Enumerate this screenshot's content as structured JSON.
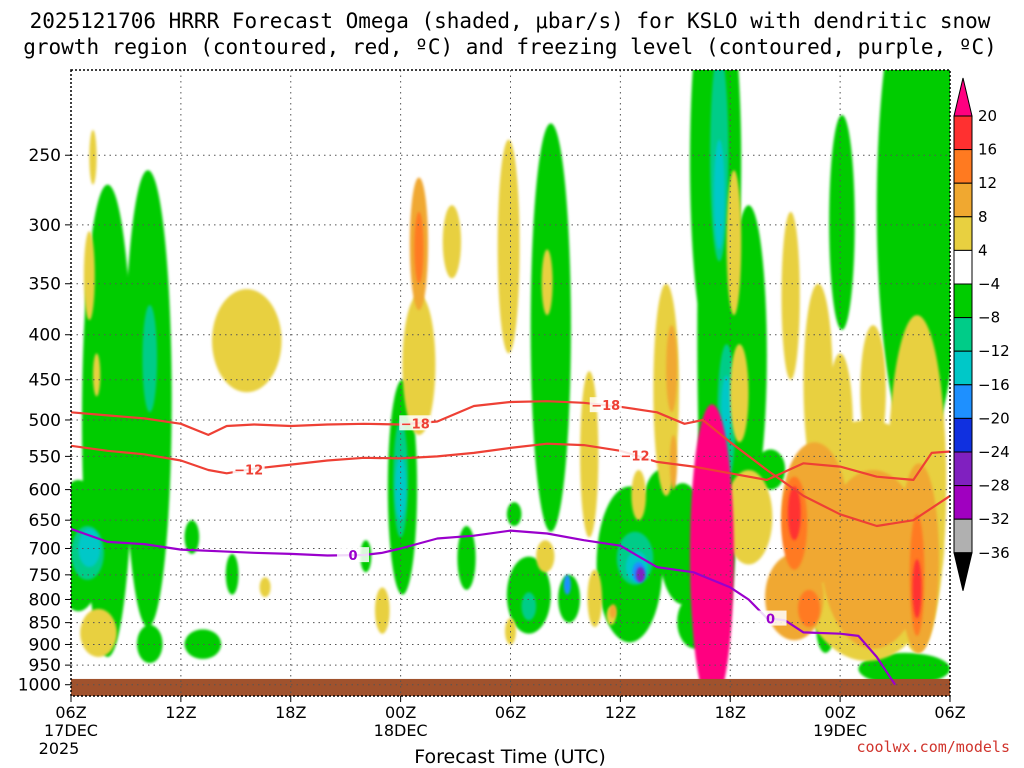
{
  "chart_data": {
    "type": "heatmap",
    "title": {
      "line1": "2025121706 HRRR Forecast Omega (shaded, μbar/s) for KSLO with dendritic snow",
      "line2": "growth region (contoured, red, ºC) and freezing level (contoured, purple, ºC)"
    },
    "xlabel": "Forecast Time (UTC)",
    "ylabel": "",
    "credit": "coolwx.com/models",
    "x_ticks": [
      {
        "h": 0,
        "label": "06Z",
        "sub1": "17DEC",
        "sub2": "2025"
      },
      {
        "h": 6,
        "label": "12Z",
        "sub1": "",
        "sub2": ""
      },
      {
        "h": 12,
        "label": "18Z",
        "sub1": "",
        "sub2": ""
      },
      {
        "h": 18,
        "label": "00Z",
        "sub1": "18DEC",
        "sub2": ""
      },
      {
        "h": 24,
        "label": "06Z",
        "sub1": "",
        "sub2": ""
      },
      {
        "h": 30,
        "label": "12Z",
        "sub1": "",
        "sub2": ""
      },
      {
        "h": 36,
        "label": "18Z",
        "sub1": "",
        "sub2": ""
      },
      {
        "h": 42,
        "label": "00Z",
        "sub1": "19DEC",
        "sub2": ""
      },
      {
        "h": 48,
        "label": "06Z",
        "sub1": "",
        "sub2": ""
      }
    ],
    "xlim": [
      0,
      48
    ],
    "y_ticks": [
      250,
      300,
      350,
      400,
      450,
      500,
      550,
      600,
      650,
      700,
      750,
      800,
      850,
      900,
      950,
      1000
    ],
    "ylim_hPa": [
      200,
      1030
    ],
    "y_scale": "log",
    "grid": true,
    "ground": {
      "pressure_hPa": 985,
      "color": "#a0522d"
    },
    "colorbar": {
      "labels": [
        "20",
        "16",
        "12",
        "8",
        "4",
        "−4",
        "−8",
        "−12",
        "−16",
        "−20",
        "−24",
        "−28",
        "−32",
        "−36"
      ],
      "colors": [
        "#ff0080",
        "#ff3030",
        "#ff7a20",
        "#f0a830",
        "#e8d040",
        "#ffffff",
        "#00cc00",
        "#00cc88",
        "#00c8c8",
        "#1e90ff",
        "#1030e0",
        "#8020c0",
        "#a000c0",
        "#b0b0b0",
        "#000000"
      ]
    },
    "omega_regions": [
      {
        "name": "green",
        "color": "#00cc00",
        "blobs": [
          [
            0.4,
            705,
            1.4,
            120
          ],
          [
            2.0,
            600,
            1.4,
            330
          ],
          [
            4.2,
            560,
            1.3,
            300
          ],
          [
            4.3,
            900,
            0.7,
            45
          ],
          [
            6.6,
            680,
            0.4,
            30
          ],
          [
            7.2,
            900,
            1.0,
            35
          ],
          [
            8.8,
            750,
            0.35,
            40
          ],
          [
            18.1,
            620,
            0.8,
            170
          ],
          [
            16.1,
            715,
            0.3,
            30
          ],
          [
            21.6,
            720,
            0.5,
            60
          ],
          [
            24.2,
            640,
            0.4,
            20
          ],
          [
            25.0,
            795,
            1.2,
            80
          ],
          [
            26.2,
            450,
            1.1,
            220
          ],
          [
            27.2,
            800,
            0.6,
            50
          ],
          [
            30.5,
            745,
            1.8,
            150
          ],
          [
            32.2,
            640,
            1.0,
            70
          ],
          [
            33.4,
            700,
            1.3,
            110
          ],
          [
            34.1,
            850,
            1.0,
            60
          ],
          [
            35.2,
            190,
            1.4,
            240
          ],
          [
            35.4,
            550,
            1.2,
            380
          ],
          [
            37.0,
            455,
            1.0,
            170
          ],
          [
            38.2,
            570,
            0.8,
            30
          ],
          [
            41.2,
            865,
            0.5,
            55
          ],
          [
            42.1,
            310,
            0.7,
            85
          ],
          [
            46.3,
            340,
            2.3,
            210
          ],
          [
            45.5,
            960,
            2.5,
            40
          ]
        ]
      },
      {
        "name": "teal",
        "color": "#00cc88",
        "blobs": [
          [
            0.9,
            710,
            0.9,
            50
          ],
          [
            4.3,
            430,
            0.4,
            60
          ],
          [
            18.0,
            590,
            0.4,
            90
          ],
          [
            30.8,
            720,
            1.0,
            50
          ],
          [
            35.4,
            260,
            0.5,
            70
          ],
          [
            35.8,
            500,
            0.5,
            90
          ],
          [
            41.2,
            840,
            0.3,
            25
          ],
          [
            25.0,
            815,
            0.4,
            30
          ]
        ]
      },
      {
        "name": "cyan",
        "color": "#00c8c8",
        "blobs": [
          [
            1.0,
            700,
            0.6,
            35
          ],
          [
            18.0,
            600,
            0.3,
            50
          ],
          [
            30.9,
            735,
            0.6,
            30
          ],
          [
            35.4,
            280,
            0.3,
            40
          ],
          [
            35.8,
            485,
            0.3,
            40
          ]
        ]
      },
      {
        "name": "blue",
        "color": "#1e90ff",
        "blobs": [
          [
            31.0,
            745,
            0.35,
            20
          ],
          [
            27.1,
            770,
            0.2,
            20
          ]
        ]
      },
      {
        "name": "purple",
        "color": "#8020c0",
        "blobs": [
          [
            31.1,
            750,
            0.25,
            15
          ]
        ]
      },
      {
        "name": "yellow",
        "color": "#e8d040",
        "blobs": [
          [
            1.2,
            252,
            0.2,
            18
          ],
          [
            1.0,
            345,
            0.3,
            40
          ],
          [
            1.4,
            445,
            0.2,
            25
          ],
          [
            1.5,
            875,
            1.0,
            55
          ],
          [
            9.6,
            410,
            1.9,
            55
          ],
          [
            10.6,
            775,
            0.3,
            20
          ],
          [
            17.0,
            825,
            0.4,
            50
          ],
          [
            19.0,
            440,
            0.9,
            80
          ],
          [
            20.8,
            315,
            0.5,
            30
          ],
          [
            23.9,
            330,
            0.6,
            90
          ],
          [
            24.0,
            870,
            0.3,
            30
          ],
          [
            25.9,
            715,
            0.5,
            30
          ],
          [
            28.6,
            800,
            0.4,
            60
          ],
          [
            28.3,
            560,
            0.5,
            120
          ],
          [
            32.5,
            480,
            0.7,
            130
          ],
          [
            31.0,
            610,
            0.4,
            40
          ],
          [
            36.2,
            320,
            0.4,
            60
          ],
          [
            36.5,
            470,
            0.5,
            60
          ],
          [
            39.3,
            370,
            0.5,
            80
          ],
          [
            40.8,
            470,
            0.8,
            120
          ],
          [
            42.0,
            520,
            0.7,
            100
          ],
          [
            37.0,
            650,
            1.3,
            80
          ],
          [
            43.8,
            470,
            0.7,
            80
          ],
          [
            43.5,
            720,
            4.2,
            220
          ],
          [
            46.2,
            650,
            1.6,
            270
          ],
          [
            29.5,
            835,
            0.25,
            20
          ],
          [
            26.0,
            350,
            0.3,
            30
          ]
        ]
      },
      {
        "name": "gold",
        "color": "#f0a830",
        "blobs": [
          [
            19.0,
            320,
            0.5,
            55
          ],
          [
            32.8,
            440,
            0.3,
            50
          ],
          [
            32.9,
            560,
            0.2,
            40
          ],
          [
            39.5,
            800,
            1.6,
            90
          ],
          [
            40.6,
            650,
            1.8,
            120
          ],
          [
            43.8,
            740,
            2.8,
            170
          ],
          [
            46.3,
            740,
            1.1,
            180
          ],
          [
            29.6,
            825,
            0.2,
            15
          ]
        ]
      },
      {
        "name": "orange",
        "color": "#ff7a20",
        "blobs": [
          [
            19.0,
            320,
            0.25,
            30
          ],
          [
            39.5,
            660,
            0.7,
            80
          ],
          [
            40.3,
            820,
            0.6,
            40
          ],
          [
            46.2,
            760,
            0.4,
            120
          ]
        ]
      },
      {
        "name": "red",
        "color": "#ff3030",
        "blobs": [
          [
            39.5,
            640,
            0.35,
            45
          ],
          [
            46.2,
            780,
            0.25,
            60
          ]
        ]
      },
      {
        "name": "magenta",
        "color": "#ff0080",
        "blobs": [
          [
            35.0,
            770,
            1.2,
            290
          ]
        ]
      }
    ],
    "contours": [
      {
        "name": "minus18",
        "label": "−18",
        "color": "#ee4035",
        "label_at": [
          18.8,
          29.2
        ],
        "x": [
          0,
          2,
          4,
          6,
          7.5,
          8.5,
          10,
          12,
          14,
          16,
          18,
          20,
          22,
          24,
          26,
          28,
          30,
          32,
          33.5,
          34.5,
          36,
          38,
          40,
          42,
          44,
          46,
          48
        ],
        "y": [
          490,
          494,
          498,
          505,
          520,
          508,
          506,
          508,
          506,
          505,
          506,
          502,
          482,
          477,
          476,
          478,
          483,
          490,
          505,
          500,
          530,
          570,
          610,
          640,
          660,
          650,
          610
        ]
      },
      {
        "name": "minus12",
        "label": "−12",
        "color": "#ee4035",
        "label_at": [
          9.7,
          30.8
        ],
        "x": [
          0,
          2,
          4,
          6,
          7.5,
          8.5,
          10,
          12,
          14,
          16,
          18,
          20,
          22,
          24,
          26,
          28,
          30,
          32,
          34,
          36,
          38,
          40,
          42,
          44,
          46,
          47,
          48
        ],
        "y": [
          535,
          542,
          547,
          556,
          570,
          575,
          568,
          562,
          556,
          552,
          553,
          550,
          545,
          538,
          532,
          534,
          542,
          558,
          565,
          575,
          585,
          560,
          565,
          580,
          585,
          545,
          543
        ]
      },
      {
        "name": "zero",
        "label": "0",
        "color": "#9a00cc",
        "label_at": [
          15.4,
          38.2
        ],
        "x": [
          0,
          2,
          4,
          6,
          8,
          10,
          12,
          14,
          16,
          17,
          18,
          20,
          22,
          24,
          26,
          28,
          30,
          32,
          34,
          36,
          37,
          38,
          39,
          40,
          42,
          43,
          44,
          45
        ],
        "y": [
          665,
          688,
          692,
          702,
          705,
          708,
          710,
          713,
          712,
          708,
          700,
          682,
          677,
          668,
          673,
          685,
          695,
          735,
          745,
          775,
          800,
          840,
          845,
          872,
          875,
          880,
          930,
          1000
        ]
      }
    ]
  }
}
